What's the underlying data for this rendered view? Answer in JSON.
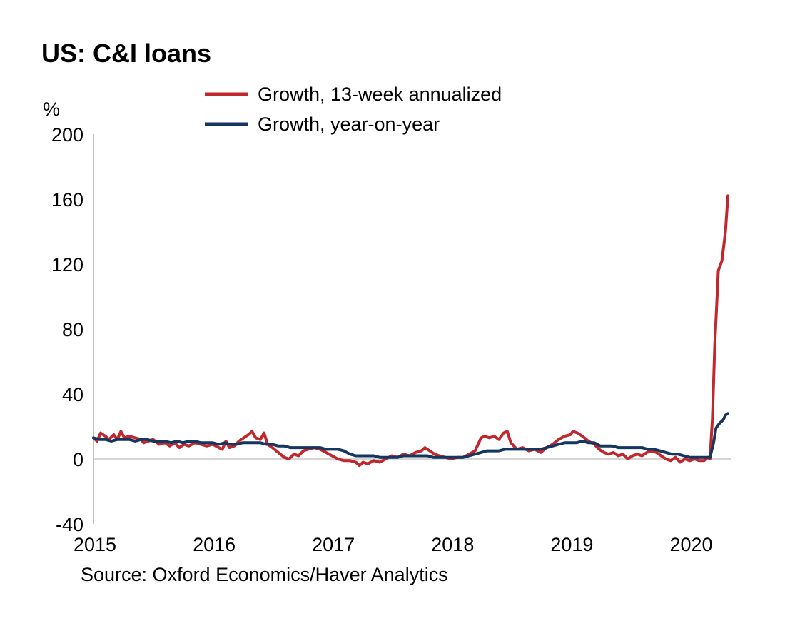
{
  "title": "US: C&I loans",
  "source": "Source: Oxford Economics/Haver Analytics",
  "chart_data": {
    "type": "line",
    "title": "US: C&I loans",
    "ylabel": "%",
    "xlabel": "",
    "ylim": [
      -40,
      200
    ],
    "xlim": [
      2015.0,
      2020.35
    ],
    "yticks": [
      "-40",
      "0",
      "40",
      "80",
      "120",
      "160",
      "200"
    ],
    "xticks": [
      "2015",
      "2016",
      "2017",
      "2018",
      "2019",
      "2020"
    ],
    "grid": false,
    "legend_position": "top",
    "series": [
      {
        "name": "Growth, 13-week annualized",
        "color": "#C0282E",
        "points": [
          [
            2015.0,
            13
          ],
          [
            2015.03,
            11
          ],
          [
            2015.06,
            16
          ],
          [
            2015.1,
            14
          ],
          [
            2015.13,
            12
          ],
          [
            2015.17,
            15
          ],
          [
            2015.2,
            12
          ],
          [
            2015.23,
            17
          ],
          [
            2015.26,
            13
          ],
          [
            2015.3,
            14
          ],
          [
            2015.35,
            13
          ],
          [
            2015.4,
            12
          ],
          [
            2015.42,
            10
          ],
          [
            2015.46,
            11
          ],
          [
            2015.5,
            12
          ],
          [
            2015.55,
            9
          ],
          [
            2015.6,
            10
          ],
          [
            2015.64,
            8
          ],
          [
            2015.68,
            10
          ],
          [
            2015.72,
            7
          ],
          [
            2015.76,
            9
          ],
          [
            2015.8,
            8
          ],
          [
            2015.85,
            10
          ],
          [
            2015.9,
            9
          ],
          [
            2015.95,
            8
          ],
          [
            2016.0,
            9
          ],
          [
            2016.05,
            7
          ],
          [
            2016.08,
            6
          ],
          [
            2016.11,
            11
          ],
          [
            2016.14,
            7
          ],
          [
            2016.18,
            8
          ],
          [
            2016.22,
            11
          ],
          [
            2016.26,
            13
          ],
          [
            2016.3,
            15
          ],
          [
            2016.33,
            17
          ],
          [
            2016.36,
            13
          ],
          [
            2016.4,
            12
          ],
          [
            2016.43,
            16
          ],
          [
            2016.46,
            9
          ],
          [
            2016.5,
            7
          ],
          [
            2016.55,
            4
          ],
          [
            2016.6,
            1
          ],
          [
            2016.64,
            0
          ],
          [
            2016.68,
            3
          ],
          [
            2016.72,
            2
          ],
          [
            2016.76,
            5
          ],
          [
            2016.8,
            6
          ],
          [
            2016.85,
            7
          ],
          [
            2016.9,
            6
          ],
          [
            2016.95,
            4
          ],
          [
            2017.0,
            2
          ],
          [
            2017.05,
            0
          ],
          [
            2017.1,
            -1
          ],
          [
            2017.15,
            -1
          ],
          [
            2017.2,
            -2
          ],
          [
            2017.23,
            -4
          ],
          [
            2017.26,
            -2
          ],
          [
            2017.3,
            -3
          ],
          [
            2017.35,
            -1
          ],
          [
            2017.4,
            -2
          ],
          [
            2017.45,
            0
          ],
          [
            2017.5,
            2
          ],
          [
            2017.55,
            1
          ],
          [
            2017.6,
            3
          ],
          [
            2017.65,
            2
          ],
          [
            2017.7,
            4
          ],
          [
            2017.75,
            5
          ],
          [
            2017.78,
            7
          ],
          [
            2017.82,
            5
          ],
          [
            2017.86,
            3
          ],
          [
            2017.9,
            2
          ],
          [
            2017.95,
            1
          ],
          [
            2018.0,
            0
          ],
          [
            2018.05,
            1
          ],
          [
            2018.1,
            1
          ],
          [
            2018.15,
            3
          ],
          [
            2018.2,
            5
          ],
          [
            2018.25,
            13
          ],
          [
            2018.28,
            14
          ],
          [
            2018.32,
            13
          ],
          [
            2018.36,
            14
          ],
          [
            2018.4,
            12
          ],
          [
            2018.44,
            16
          ],
          [
            2018.47,
            17
          ],
          [
            2018.5,
            10
          ],
          [
            2018.55,
            6
          ],
          [
            2018.6,
            7
          ],
          [
            2018.65,
            5
          ],
          [
            2018.7,
            6
          ],
          [
            2018.75,
            4
          ],
          [
            2018.8,
            7
          ],
          [
            2018.85,
            9
          ],
          [
            2018.9,
            12
          ],
          [
            2018.95,
            14
          ],
          [
            2019.0,
            15
          ],
          [
            2019.02,
            17
          ],
          [
            2019.06,
            16
          ],
          [
            2019.1,
            14
          ],
          [
            2019.15,
            11
          ],
          [
            2019.2,
            9
          ],
          [
            2019.24,
            6
          ],
          [
            2019.28,
            4
          ],
          [
            2019.32,
            3
          ],
          [
            2019.36,
            4
          ],
          [
            2019.4,
            2
          ],
          [
            2019.44,
            3
          ],
          [
            2019.48,
            0
          ],
          [
            2019.52,
            2
          ],
          [
            2019.56,
            3
          ],
          [
            2019.6,
            2
          ],
          [
            2019.64,
            4
          ],
          [
            2019.68,
            5
          ],
          [
            2019.72,
            4
          ],
          [
            2019.76,
            2
          ],
          [
            2019.8,
            0
          ],
          [
            2019.84,
            -1
          ],
          [
            2019.88,
            1
          ],
          [
            2019.92,
            -2
          ],
          [
            2019.96,
            0
          ],
          [
            2020.0,
            -1
          ],
          [
            2020.04,
            0
          ],
          [
            2020.08,
            -1
          ],
          [
            2020.12,
            -1
          ],
          [
            2020.15,
            1
          ],
          [
            2020.17,
            0
          ],
          [
            2020.19,
            25
          ],
          [
            2020.21,
            70
          ],
          [
            2020.24,
            116
          ],
          [
            2020.27,
            122
          ],
          [
            2020.3,
            140
          ],
          [
            2020.32,
            162
          ]
        ]
      },
      {
        "name": "Growth, year-on-year",
        "color": "#14365F",
        "points": [
          [
            2015.0,
            13
          ],
          [
            2015.05,
            12
          ],
          [
            2015.1,
            12
          ],
          [
            2015.15,
            11
          ],
          [
            2015.2,
            12
          ],
          [
            2015.25,
            12
          ],
          [
            2015.3,
            12
          ],
          [
            2015.35,
            11
          ],
          [
            2015.4,
            12
          ],
          [
            2015.45,
            12
          ],
          [
            2015.5,
            11
          ],
          [
            2015.55,
            11
          ],
          [
            2015.6,
            11
          ],
          [
            2015.65,
            10
          ],
          [
            2015.7,
            11
          ],
          [
            2015.75,
            10
          ],
          [
            2015.8,
            11
          ],
          [
            2015.85,
            11
          ],
          [
            2015.9,
            10
          ],
          [
            2015.95,
            10
          ],
          [
            2016.0,
            10
          ],
          [
            2016.05,
            9
          ],
          [
            2016.1,
            10
          ],
          [
            2016.15,
            9
          ],
          [
            2016.2,
            9
          ],
          [
            2016.25,
            10
          ],
          [
            2016.3,
            10
          ],
          [
            2016.35,
            10
          ],
          [
            2016.4,
            10
          ],
          [
            2016.45,
            9
          ],
          [
            2016.5,
            9
          ],
          [
            2016.55,
            8
          ],
          [
            2016.6,
            8
          ],
          [
            2016.65,
            7
          ],
          [
            2016.7,
            7
          ],
          [
            2016.75,
            7
          ],
          [
            2016.8,
            7
          ],
          [
            2016.85,
            7
          ],
          [
            2016.9,
            7
          ],
          [
            2016.95,
            6
          ],
          [
            2017.0,
            6
          ],
          [
            2017.05,
            6
          ],
          [
            2017.1,
            5
          ],
          [
            2017.15,
            3
          ],
          [
            2017.2,
            2
          ],
          [
            2017.25,
            2
          ],
          [
            2017.3,
            2
          ],
          [
            2017.35,
            2
          ],
          [
            2017.4,
            1
          ],
          [
            2017.45,
            1
          ],
          [
            2017.5,
            1
          ],
          [
            2017.55,
            1
          ],
          [
            2017.6,
            2
          ],
          [
            2017.65,
            2
          ],
          [
            2017.7,
            2
          ],
          [
            2017.75,
            2
          ],
          [
            2017.8,
            2
          ],
          [
            2017.85,
            1
          ],
          [
            2017.9,
            1
          ],
          [
            2017.95,
            1
          ],
          [
            2018.0,
            1
          ],
          [
            2018.05,
            1
          ],
          [
            2018.1,
            1
          ],
          [
            2018.15,
            2
          ],
          [
            2018.2,
            3
          ],
          [
            2018.25,
            4
          ],
          [
            2018.3,
            5
          ],
          [
            2018.35,
            5
          ],
          [
            2018.4,
            5
          ],
          [
            2018.45,
            6
          ],
          [
            2018.5,
            6
          ],
          [
            2018.55,
            6
          ],
          [
            2018.6,
            6
          ],
          [
            2018.65,
            6
          ],
          [
            2018.7,
            6
          ],
          [
            2018.75,
            6
          ],
          [
            2018.8,
            7
          ],
          [
            2018.85,
            8
          ],
          [
            2018.9,
            9
          ],
          [
            2018.95,
            10
          ],
          [
            2019.0,
            10
          ],
          [
            2019.05,
            10
          ],
          [
            2019.1,
            11
          ],
          [
            2019.15,
            10
          ],
          [
            2019.2,
            10
          ],
          [
            2019.25,
            8
          ],
          [
            2019.3,
            8
          ],
          [
            2019.35,
            8
          ],
          [
            2019.4,
            7
          ],
          [
            2019.45,
            7
          ],
          [
            2019.5,
            7
          ],
          [
            2019.55,
            7
          ],
          [
            2019.6,
            7
          ],
          [
            2019.65,
            6
          ],
          [
            2019.7,
            6
          ],
          [
            2019.75,
            5
          ],
          [
            2019.8,
            4
          ],
          [
            2019.85,
            3
          ],
          [
            2019.9,
            3
          ],
          [
            2019.95,
            2
          ],
          [
            2020.0,
            1
          ],
          [
            2020.05,
            1
          ],
          [
            2020.1,
            1
          ],
          [
            2020.15,
            1
          ],
          [
            2020.17,
            1
          ],
          [
            2020.2,
            10
          ],
          [
            2020.22,
            19
          ],
          [
            2020.25,
            22
          ],
          [
            2020.28,
            24
          ],
          [
            2020.3,
            27
          ],
          [
            2020.32,
            28
          ]
        ]
      }
    ]
  }
}
